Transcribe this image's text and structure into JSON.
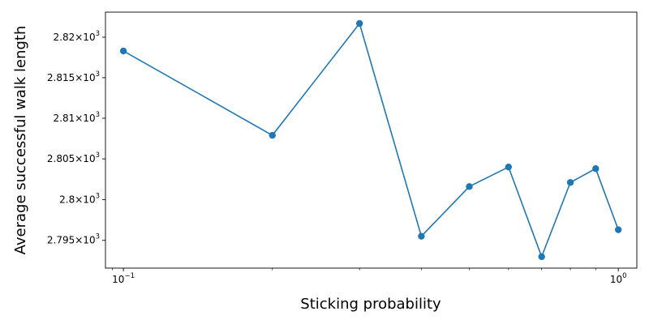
{
  "chart_data": {
    "type": "line",
    "xlabel": "Sticking probability",
    "ylabel": "Average successful walk length",
    "x_scale": "log",
    "y_scale": "log",
    "xlim": [
      0.092,
      1.09
    ],
    "ylim": [
      2791.6,
      2823.1
    ],
    "grid": false,
    "color": "#1f77b4",
    "x_ticks": [
      {
        "value": 0.1,
        "base": "10",
        "exp": "−1"
      },
      {
        "value": 1.0,
        "base": "10",
        "exp": "0"
      }
    ],
    "y_ticks": [
      {
        "value": 2795,
        "mant": "2.795",
        "exp": "3"
      },
      {
        "value": 2800,
        "mant": "2.8",
        "exp": "3"
      },
      {
        "value": 2805,
        "mant": "2.805",
        "exp": "3"
      },
      {
        "value": 2810,
        "mant": "2.81",
        "exp": "3"
      },
      {
        "value": 2815,
        "mant": "2.815",
        "exp": "3"
      },
      {
        "value": 2820,
        "mant": "2.82",
        "exp": "3"
      }
    ],
    "series": [
      {
        "x": [
          0.1,
          0.2,
          0.3,
          0.4,
          0.5,
          0.6,
          0.7,
          0.8,
          0.9,
          1.0
        ],
        "y": [
          2818.3,
          2807.9,
          2821.7,
          2795.5,
          2801.6,
          2804.0,
          2793.0,
          2802.1,
          2803.8,
          2796.3
        ]
      }
    ]
  }
}
